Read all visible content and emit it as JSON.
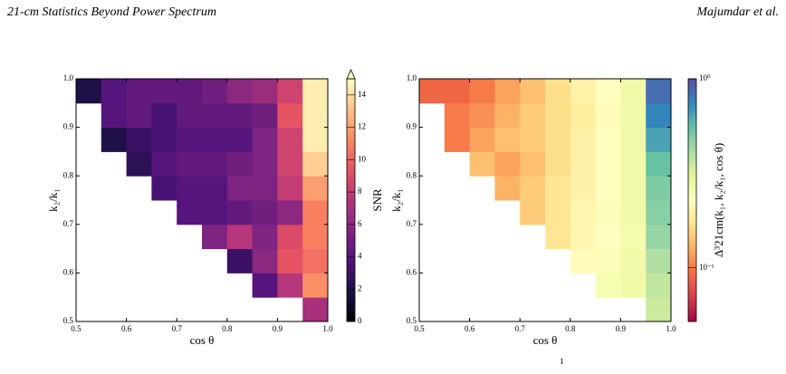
{
  "header": {
    "title": "21-cm Statistics Beyond Power Spectrum",
    "authors": "Majumdar et al."
  },
  "chart_data": [
    {
      "type": "heatmap",
      "xlabel": "cos θ",
      "ylabel": "k₂/k₁",
      "xlim": [
        0.5,
        1
      ],
      "ylim": [
        0.5,
        1
      ],
      "xticks": [
        0.5,
        0.6,
        0.7,
        0.8,
        0.9,
        {
          "value": 1,
          "label": "1.0"
        }
      ],
      "yticks": [
        0.5,
        0.6,
        0.7,
        0.8,
        0.9,
        {
          "value": 1,
          "label": "1.0"
        }
      ],
      "z": [
        [
          null,
          null,
          null,
          null,
          null,
          null,
          null,
          null,
          null,
          7
        ],
        [
          null,
          null,
          null,
          null,
          null,
          null,
          null,
          4,
          7.5,
          11.5
        ],
        [
          null,
          null,
          null,
          null,
          null,
          null,
          3,
          6,
          9.5,
          10.5
        ],
        [
          null,
          null,
          null,
          null,
          null,
          5.5,
          7.5,
          5.5,
          9,
          11
        ],
        [
          null,
          null,
          null,
          null,
          4,
          4,
          4.5,
          5,
          6,
          11
        ],
        [
          null,
          null,
          null,
          3.5,
          4,
          4,
          5.5,
          5.5,
          8,
          12
        ],
        [
          null,
          null,
          2.5,
          4,
          4.5,
          4.5,
          5,
          5.5,
          8.5,
          13.5
        ],
        [
          null,
          2,
          3,
          3.5,
          4,
          4,
          4,
          5.5,
          8.5,
          14.5
        ],
        [
          null,
          4,
          4.5,
          3.5,
          4.5,
          4.5,
          4.5,
          5,
          9.5,
          14.5
        ],
        [
          2,
          4,
          4.5,
          4.5,
          4.5,
          5,
          6,
          6.5,
          8.5,
          14.5
        ]
      ],
      "colormap": "magma",
      "color_scale": "linear",
      "clim": [
        0,
        15
      ],
      "extend": "max",
      "cticks": [
        0,
        2,
        4,
        6,
        8,
        10,
        12,
        14
      ],
      "clabel": "SNR"
    },
    {
      "type": "heatmap",
      "xlabel": "cos θ",
      "ylabel": "k₂/k₁",
      "xlim": [
        0.5,
        1
      ],
      "ylim": [
        0.5,
        1
      ],
      "xticks": [
        0.5,
        0.6,
        0.7,
        0.8,
        0.9,
        {
          "value": 1,
          "label": "1.0"
        }
      ],
      "yticks": [
        0.5,
        0.6,
        0.7,
        0.8,
        0.9,
        {
          "value": 1,
          "label": "1.0"
        }
      ],
      "z": [
        [
          null,
          null,
          null,
          null,
          null,
          null,
          null,
          null,
          null,
          0.35
        ],
        [
          null,
          null,
          null,
          null,
          null,
          null,
          null,
          0.25,
          0.27,
          0.37
        ],
        [
          null,
          null,
          null,
          null,
          null,
          null,
          0.22,
          0.24,
          0.27,
          0.4
        ],
        [
          null,
          null,
          null,
          null,
          null,
          0.18,
          0.21,
          0.23,
          0.26,
          0.45
        ],
        [
          null,
          null,
          null,
          null,
          0.15,
          0.18,
          0.21,
          0.24,
          0.27,
          0.48
        ],
        [
          null,
          null,
          null,
          0.13,
          0.15,
          0.18,
          0.2,
          0.23,
          0.27,
          0.5
        ],
        [
          null,
          null,
          0.14,
          0.12,
          0.14,
          0.17,
          0.2,
          0.23,
          0.27,
          0.55
        ],
        [
          null,
          0.1,
          0.12,
          0.14,
          0.15,
          0.17,
          0.2,
          0.23,
          0.27,
          0.65
        ],
        [
          null,
          0.1,
          0.11,
          0.13,
          0.15,
          0.17,
          0.19,
          0.22,
          0.27,
          0.75
        ],
        [
          0.09,
          0.09,
          0.1,
          0.12,
          0.14,
          0.17,
          0.2,
          0.23,
          0.27,
          0.85
        ]
      ],
      "colormap": "Spectral",
      "color_scale": "log",
      "clim": [
        0.052,
        1
      ],
      "cticks": [
        {
          "value": 1,
          "label": "10⁰"
        },
        {
          "value": 0.1,
          "label": "10⁻¹"
        }
      ],
      "clabel": "Δ³21cm(k₁, k₂/k₁, cos θ)"
    }
  ],
  "footer": "1"
}
